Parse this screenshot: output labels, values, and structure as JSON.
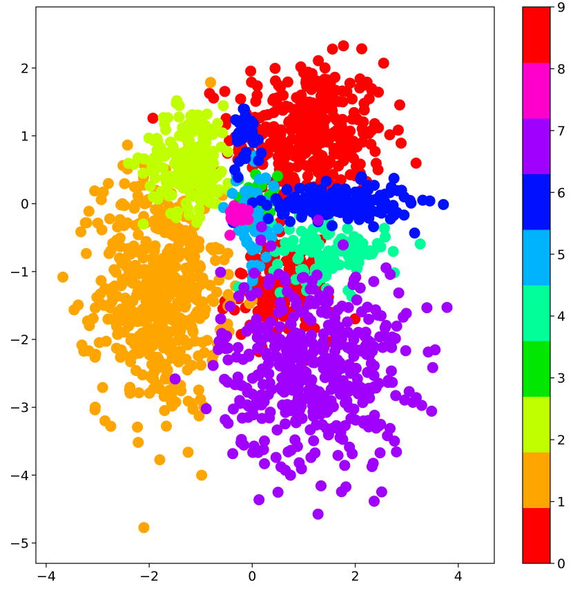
{
  "chart_data": {
    "type": "scatter",
    "title": "",
    "xlabel": "",
    "ylabel": "",
    "xlim": [
      -4.2,
      4.7
    ],
    "ylim": [
      -5.3,
      2.9
    ],
    "x_ticks": [
      -4,
      -2,
      0,
      2,
      4
    ],
    "x_tick_labels": [
      "−4",
      "−2",
      "0",
      "2",
      "4"
    ],
    "y_ticks": [
      -5,
      -4,
      -3,
      -2,
      -1,
      0,
      1,
      2
    ],
    "y_tick_labels": [
      "−5",
      "−4",
      "−3",
      "−2",
      "−1",
      "0",
      "1",
      "2"
    ],
    "grid": false,
    "colorbar": {
      "range": [
        0,
        9
      ],
      "ticks": [
        0,
        1,
        2,
        3,
        4,
        5,
        6,
        7,
        8,
        9
      ],
      "tick_labels": [
        "0",
        "1",
        "2",
        "3",
        "4",
        "5",
        "6",
        "7",
        "8",
        "9"
      ],
      "colors": [
        "#ff0000",
        "#ffa500",
        "#bfff00",
        "#00e600",
        "#00ff99",
        "#00b3ff",
        "#0011ff",
        "#a000ff",
        "#ff00cc",
        "#ff0000"
      ]
    },
    "clusters": [
      {
        "label": 0,
        "color": "#ff0000",
        "center": [
          1.1,
          1.0
        ],
        "spread": [
          0.75,
          0.55
        ],
        "n": 360
      },
      {
        "label": 0,
        "color": "#ff0000",
        "center": [
          0.6,
          -1.3
        ],
        "spread": [
          0.5,
          0.35
        ],
        "n": 140
      },
      {
        "label": 1,
        "color": "#ffa500",
        "center": [
          -1.8,
          -1.3
        ],
        "spread": [
          0.6,
          0.9
        ],
        "n": 520
      },
      {
        "label": 2,
        "color": "#bfff00",
        "center": [
          -1.2,
          0.65
        ],
        "spread": [
          0.45,
          0.4
        ],
        "n": 190
      },
      {
        "label": 3,
        "color": "#00e600",
        "center": [
          0.1,
          0.1
        ],
        "spread": [
          0.2,
          0.2
        ],
        "n": 30
      },
      {
        "label": 4,
        "color": "#00ff99",
        "center": [
          1.5,
          -0.7
        ],
        "spread": [
          0.55,
          0.25
        ],
        "n": 120
      },
      {
        "label": 5,
        "color": "#00b3ff",
        "center": [
          0.0,
          -0.3
        ],
        "spread": [
          0.25,
          0.4
        ],
        "n": 50
      },
      {
        "label": 6,
        "color": "#0011ff",
        "center": [
          1.7,
          0.0
        ],
        "spread": [
          0.7,
          0.15
        ],
        "n": 170
      },
      {
        "label": 6,
        "color": "#0011ff",
        "center": [
          -0.1,
          1.05
        ],
        "spread": [
          0.15,
          0.25
        ],
        "n": 30
      },
      {
        "label": 7,
        "color": "#a000ff",
        "center": [
          1.2,
          -2.4
        ],
        "spread": [
          0.9,
          0.75
        ],
        "n": 450
      },
      {
        "label": 8,
        "color": "#ff00cc",
        "center": [
          -0.3,
          -0.2
        ],
        "spread": [
          0.2,
          0.1
        ],
        "n": 20
      }
    ]
  }
}
